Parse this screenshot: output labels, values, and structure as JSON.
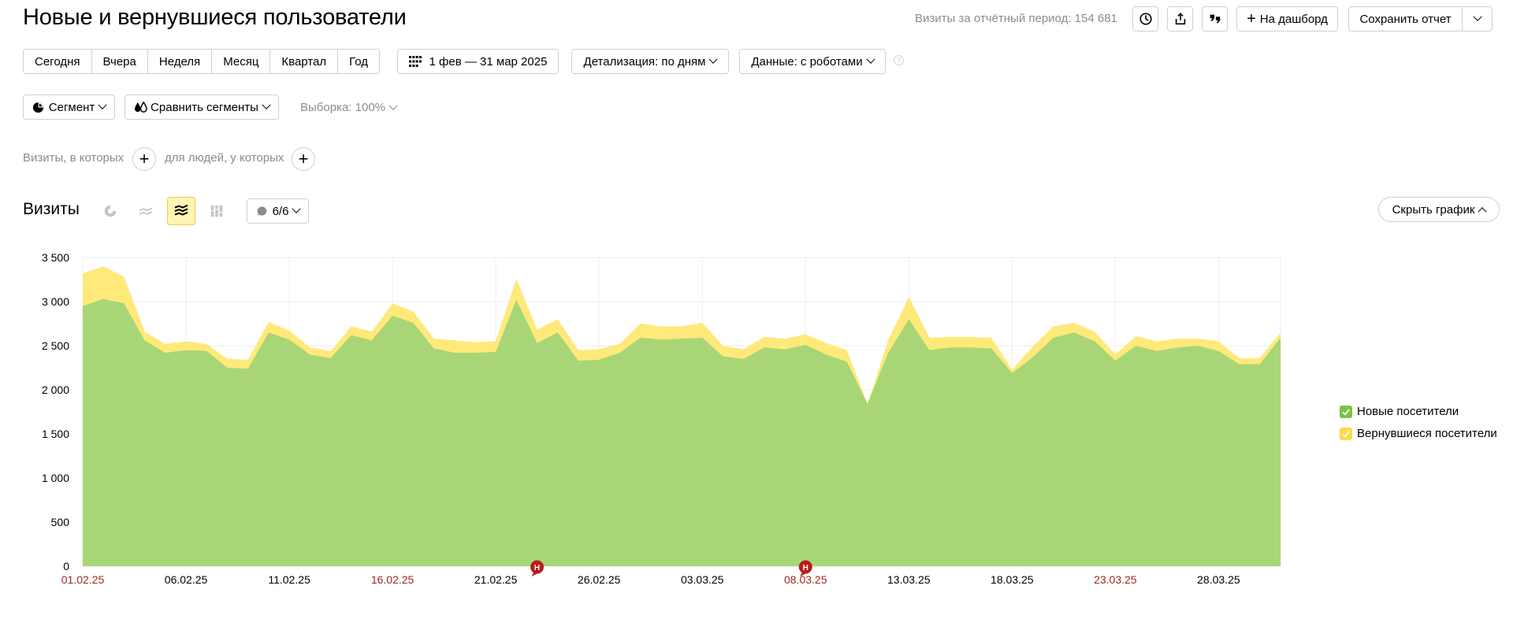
{
  "header": {
    "title": "Новые и вернувшиеся пользователи",
    "visits_total": "Визиты за отчётный период: 154 681",
    "history_icon": "history-icon",
    "export_icon": "export-icon",
    "quote_icon": "quote-icon",
    "dashboard_label": "На дашборд",
    "save_label": "Сохранить отчет"
  },
  "periods": [
    "Сегодня",
    "Вчера",
    "Неделя",
    "Месяц",
    "Квартал",
    "Год"
  ],
  "date_range": "1 фев — 31 мар 2025",
  "detail": "Детализация: по дням",
  "data_mode": "Данные: с роботами",
  "segment_label": "Сегмент",
  "compare_label": "Сравнить сегменты",
  "sample_label": "Выборка: 100%",
  "filters": {
    "visits_label": "Визиты, в которых",
    "people_label": "для людей, у которых"
  },
  "chart_section": {
    "title": "Визиты",
    "series_count": "6/6",
    "hide_label": "Скрыть график"
  },
  "colors": {
    "new": "#a8d676",
    "returning": "#ffe97a",
    "legend_new": "#7cc245",
    "legend_returning": "#ffd84a",
    "holiday": "#9b2a1e",
    "marker": "#b71c1c"
  },
  "chart_data": {
    "type": "area",
    "stacked": true,
    "title": "Визиты",
    "ylim": [
      0,
      3500
    ],
    "yticks": [
      0,
      500,
      1000,
      1500,
      2000,
      2500,
      3000,
      3500
    ],
    "ytick_labels": [
      "0",
      "500",
      "1 000",
      "1 500",
      "2 000",
      "2 500",
      "3 000",
      "3 500"
    ],
    "xtick_labels": [
      {
        "label": "01.02.25",
        "index": 0,
        "holiday": true
      },
      {
        "label": "06.02.25",
        "index": 5,
        "holiday": false
      },
      {
        "label": "11.02.25",
        "index": 10,
        "holiday": false
      },
      {
        "label": "16.02.25",
        "index": 15,
        "holiday": true
      },
      {
        "label": "21.02.25",
        "index": 20,
        "holiday": false
      },
      {
        "label": "26.02.25",
        "index": 25,
        "holiday": false
      },
      {
        "label": "03.03.25",
        "index": 30,
        "holiday": false
      },
      {
        "label": "08.03.25",
        "index": 35,
        "holiday": true
      },
      {
        "label": "13.03.25",
        "index": 40,
        "holiday": false
      },
      {
        "label": "18.03.25",
        "index": 45,
        "holiday": false
      },
      {
        "label": "23.03.25",
        "index": 50,
        "holiday": true
      },
      {
        "label": "28.03.25",
        "index": 55,
        "holiday": false
      }
    ],
    "markers": [
      {
        "index": 22,
        "label": "Н"
      },
      {
        "index": 35,
        "label": "Н"
      }
    ],
    "series": [
      {
        "name": "Новые посетители",
        "values": [
          2950,
          3030,
          2980,
          2560,
          2420,
          2450,
          2440,
          2250,
          2240,
          2650,
          2570,
          2400,
          2360,
          2620,
          2560,
          2840,
          2760,
          2470,
          2420,
          2420,
          2430,
          3020,
          2530,
          2650,
          2330,
          2340,
          2420,
          2590,
          2570,
          2580,
          2590,
          2380,
          2350,
          2480,
          2460,
          2510,
          2400,
          2320,
          1840,
          2420,
          2800,
          2450,
          2480,
          2480,
          2470,
          2190,
          2370,
          2590,
          2650,
          2550,
          2330,
          2500,
          2440,
          2480,
          2500,
          2440,
          2290,
          2290,
          2590
        ]
      },
      {
        "name": "Вернувшиеся посетители",
        "values": [
          370,
          370,
          300,
          100,
          100,
          100,
          80,
          100,
          100,
          120,
          100,
          80,
          80,
          100,
          100,
          140,
          130,
          110,
          140,
          120,
          120,
          240,
          150,
          150,
          120,
          120,
          100,
          160,
          150,
          140,
          170,
          120,
          110,
          120,
          120,
          120,
          130,
          130,
          0,
          140,
          250,
          140,
          120,
          120,
          120,
          40,
          120,
          130,
          110,
          110,
          70,
          110,
          110,
          100,
          80,
          110,
          70,
          70,
          60
        ]
      }
    ]
  }
}
